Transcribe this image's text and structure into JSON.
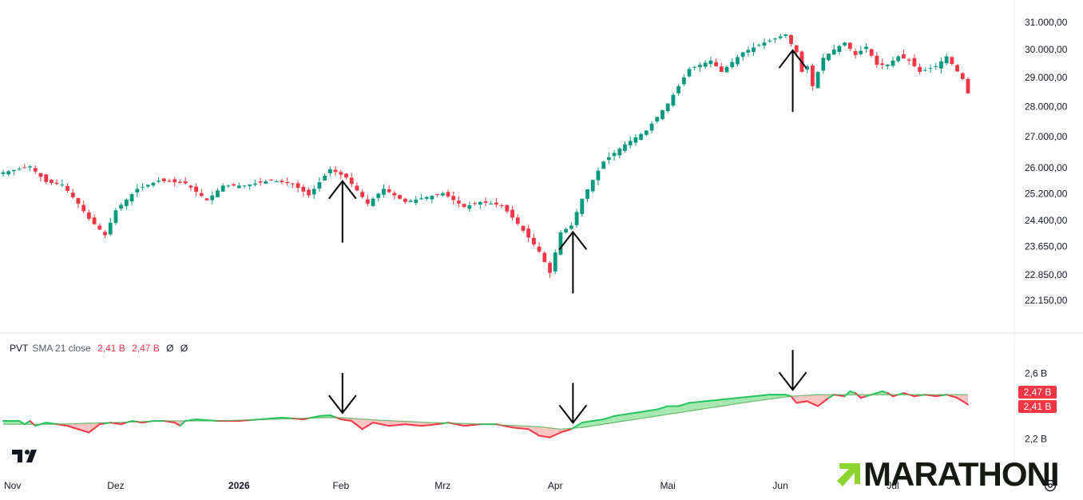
{
  "chart_data": [
    {
      "type": "candlestick",
      "series_name": "",
      "y_scale": "log",
      "ylim": [
        21900,
        31300
      ],
      "y_ticks": [
        "31.000,00",
        "30.000,00",
        "29.000,00",
        "28.000,00",
        "27.000,00",
        "26.000,00",
        "25.200,00",
        "24.400,00",
        "23.650,00",
        "22.850,00",
        "22.150,00"
      ],
      "y_tick_values": [
        31000,
        30000,
        29000,
        28000,
        27000,
        26000,
        25200,
        24400,
        23650,
        22850,
        22150
      ],
      "x_ticks": [
        "Nov",
        "Dez",
        "2026",
        "Feb",
        "Mrz",
        "Apr",
        "Mai",
        "Jun",
        "Jul"
      ],
      "x_tick_bold": [
        false,
        false,
        true,
        false,
        false,
        false,
        false,
        false,
        false
      ],
      "x_tick_index": [
        0,
        21,
        44,
        63,
        82,
        103,
        124,
        145,
        166
      ],
      "up_color": "#089981",
      "down_color": "#f23645",
      "anchors": [
        [
          0,
          25860
        ],
        [
          5,
          26050
        ],
        [
          8,
          25560
        ],
        [
          11,
          25480
        ],
        [
          14,
          24900
        ],
        [
          16,
          24450
        ],
        [
          19,
          23970
        ],
        [
          21,
          24700
        ],
        [
          25,
          25350
        ],
        [
          29,
          25600
        ],
        [
          34,
          25520
        ],
        [
          38,
          25000
        ],
        [
          41,
          25450
        ],
        [
          45,
          25450
        ],
        [
          50,
          25610
        ],
        [
          54,
          25500
        ],
        [
          57,
          25150
        ],
        [
          61,
          25960
        ],
        [
          64,
          25700
        ],
        [
          68,
          24900
        ],
        [
          71,
          25350
        ],
        [
          75,
          24950
        ],
        [
          79,
          25100
        ],
        [
          82,
          25220
        ],
        [
          86,
          24800
        ],
        [
          89,
          24950
        ],
        [
          93,
          24850
        ],
        [
          96,
          24300
        ],
        [
          100,
          23500
        ],
        [
          102,
          22900
        ],
        [
          104,
          24050
        ],
        [
          106,
          24250
        ],
        [
          108,
          25050
        ],
        [
          112,
          26200
        ],
        [
          116,
          26750
        ],
        [
          120,
          27200
        ],
        [
          124,
          28100
        ],
        [
          128,
          29300
        ],
        [
          132,
          29600
        ],
        [
          134,
          29200
        ],
        [
          138,
          29900
        ],
        [
          142,
          30250
        ],
        [
          146,
          30550
        ],
        [
          147,
          30200
        ],
        [
          148,
          29900
        ],
        [
          149,
          29200
        ],
        [
          150,
          29400
        ],
        [
          151,
          28700
        ],
        [
          153,
          29700
        ],
        [
          155,
          30000
        ],
        [
          157,
          30250
        ],
        [
          159,
          29800
        ],
        [
          161,
          30100
        ],
        [
          163,
          29450
        ],
        [
          165,
          29450
        ],
        [
          167,
          29750
        ],
        [
          169,
          29600
        ],
        [
          171,
          29200
        ],
        [
          174,
          29400
        ],
        [
          176,
          29750
        ],
        [
          179,
          28950
        ],
        [
          180,
          28450
        ]
      ],
      "annotations": [
        {
          "type": "arrow-up",
          "at_index": 63
        },
        {
          "type": "arrow-up",
          "at_index": 106
        },
        {
          "type": "arrow-up",
          "at_index": 147
        }
      ]
    },
    {
      "type": "area",
      "title": "PVT",
      "series": [
        {
          "name": "PVT",
          "color": "#f23645",
          "last_value_label": "2,41 B"
        },
        {
          "name": "SMA 21 close",
          "color": "#ff5252",
          "last_value_label": "2,47 B"
        }
      ],
      "legend_extra": [
        "Ø",
        "Ø"
      ],
      "y_ticks": [
        "2,6 B",
        "2,2 B"
      ],
      "y_tick_values": [
        2.6,
        2.2
      ],
      "ylim": [
        2.14,
        2.66
      ],
      "pvt_anchors": [
        [
          0,
          2.31
        ],
        [
          3,
          2.31
        ],
        [
          4,
          2.29
        ],
        [
          5,
          2.31
        ],
        [
          6,
          2.28
        ],
        [
          8,
          2.3
        ],
        [
          10,
          2.29
        ],
        [
          12,
          2.28
        ],
        [
          14,
          2.26
        ],
        [
          16,
          2.24
        ],
        [
          18,
          2.29
        ],
        [
          20,
          2.3
        ],
        [
          22,
          2.29
        ],
        [
          24,
          2.31
        ],
        [
          26,
          2.3
        ],
        [
          28,
          2.31
        ],
        [
          30,
          2.31
        ],
        [
          32,
          2.3
        ],
        [
          33,
          2.28
        ],
        [
          34,
          2.31
        ],
        [
          36,
          2.32
        ],
        [
          40,
          2.31
        ],
        [
          44,
          2.31
        ],
        [
          48,
          2.32
        ],
        [
          52,
          2.33
        ],
        [
          56,
          2.32
        ],
        [
          59,
          2.34
        ],
        [
          61,
          2.345
        ],
        [
          63,
          2.32
        ],
        [
          65,
          2.31
        ],
        [
          67,
          2.26
        ],
        [
          69,
          2.3
        ],
        [
          72,
          2.28
        ],
        [
          75,
          2.29
        ],
        [
          78,
          2.28
        ],
        [
          81,
          2.29
        ],
        [
          83,
          2.3
        ],
        [
          86,
          2.28
        ],
        [
          89,
          2.29
        ],
        [
          92,
          2.29
        ],
        [
          95,
          2.27
        ],
        [
          98,
          2.26
        ],
        [
          100,
          2.22
        ],
        [
          102,
          2.21
        ],
        [
          104,
          2.24
        ],
        [
          106,
          2.26
        ],
        [
          108,
          2.3
        ],
        [
          110,
          2.31
        ],
        [
          112,
          2.32
        ],
        [
          114,
          2.34
        ],
        [
          116,
          2.35
        ],
        [
          118,
          2.36
        ],
        [
          120,
          2.37
        ],
        [
          122,
          2.38
        ],
        [
          124,
          2.4
        ],
        [
          126,
          2.4
        ],
        [
          128,
          2.42
        ],
        [
          131,
          2.43
        ],
        [
          134,
          2.44
        ],
        [
          137,
          2.45
        ],
        [
          140,
          2.46
        ],
        [
          143,
          2.47
        ],
        [
          146,
          2.47
        ],
        [
          147,
          2.46
        ],
        [
          148,
          2.42
        ],
        [
          150,
          2.43
        ],
        [
          152,
          2.4
        ],
        [
          154,
          2.45
        ],
        [
          155,
          2.47
        ],
        [
          157,
          2.46
        ],
        [
          158,
          2.49
        ],
        [
          159,
          2.48
        ],
        [
          160,
          2.45
        ],
        [
          162,
          2.47
        ],
        [
          164,
          2.49
        ],
        [
          165,
          2.48
        ],
        [
          166,
          2.46
        ],
        [
          168,
          2.48
        ],
        [
          170,
          2.46
        ],
        [
          172,
          2.47
        ],
        [
          174,
          2.46
        ],
        [
          176,
          2.47
        ],
        [
          178,
          2.45
        ],
        [
          180,
          2.41
        ]
      ],
      "sma_anchors": [
        [
          0,
          2.29
        ],
        [
          10,
          2.29
        ],
        [
          20,
          2.3
        ],
        [
          30,
          2.31
        ],
        [
          40,
          2.31
        ],
        [
          50,
          2.32
        ],
        [
          60,
          2.33
        ],
        [
          63,
          2.33
        ],
        [
          70,
          2.315
        ],
        [
          80,
          2.3
        ],
        [
          90,
          2.29
        ],
        [
          100,
          2.275
        ],
        [
          104,
          2.26
        ],
        [
          108,
          2.27
        ],
        [
          116,
          2.31
        ],
        [
          124,
          2.35
        ],
        [
          132,
          2.39
        ],
        [
          140,
          2.43
        ],
        [
          147,
          2.46
        ],
        [
          152,
          2.47
        ],
        [
          160,
          2.47
        ],
        [
          170,
          2.47
        ],
        [
          180,
          2.47
        ]
      ],
      "up_fill": "#a7e8b0",
      "down_fill": "#fbc4c4",
      "pvt_up_color": "#22c55e",
      "pvt_down_color": "#f23645",
      "annotations": [
        {
          "type": "arrow-down",
          "at_index": 63
        },
        {
          "type": "arrow-down",
          "at_index": 106
        },
        {
          "type": "arrow-down",
          "at_index": 147
        }
      ],
      "badges": [
        {
          "label": "2,47 B",
          "value": 2.47,
          "color": "#f23645"
        },
        {
          "label": "2,41 B",
          "value": 2.41,
          "color": "#f23645"
        }
      ]
    }
  ],
  "legend": {
    "name": "PVT",
    "params": "SMA 21 close",
    "value1": "2,41 B",
    "value2": "2,47 B",
    "sym1": "Ø",
    "sym2": "Ø"
  },
  "branding": {
    "logo_text": "MARATHONI",
    "logo_color": "#151a12",
    "accent_color": "#8ed42e",
    "platform_logo": "tradingview-logo"
  }
}
